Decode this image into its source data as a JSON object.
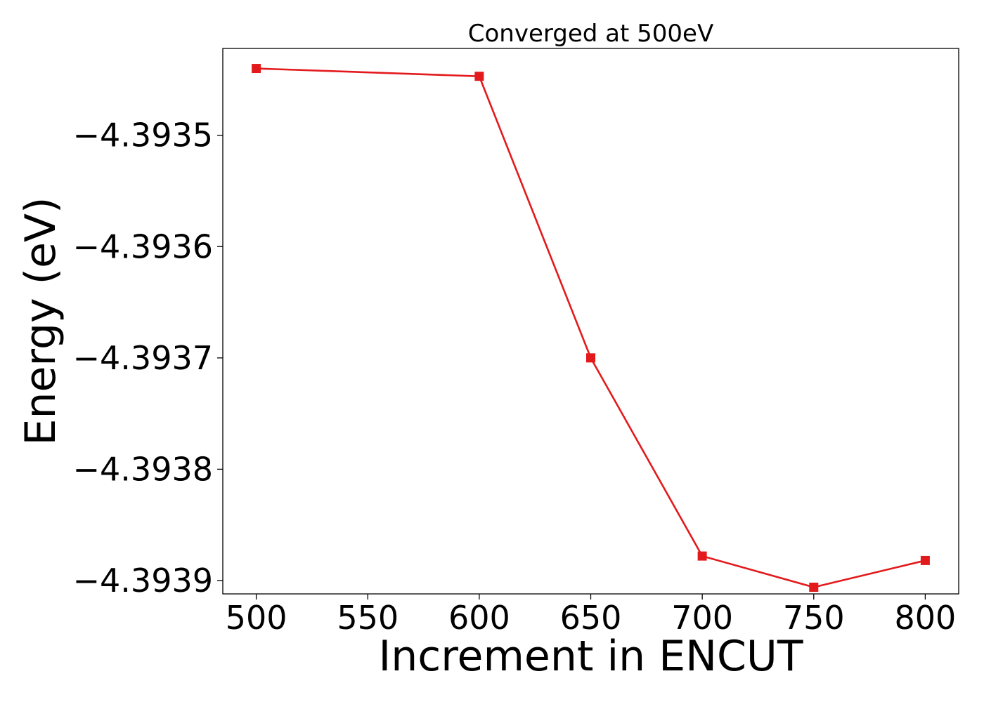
{
  "chart_data": {
    "type": "line",
    "title": "Converged at 500eV",
    "xlabel": "Increment in ENCUT",
    "ylabel": "Energy (eV)",
    "x": [
      500,
      600,
      650,
      700,
      750,
      800
    ],
    "series": [
      {
        "values": [
          -4.39344,
          -4.393447,
          -4.3937,
          -4.393878,
          -4.393906,
          -4.393882
        ],
        "color": "#e31a1c",
        "marker": "square"
      }
    ],
    "x_ticks": [
      500,
      550,
      600,
      650,
      700,
      750,
      800
    ],
    "x_tick_labels": [
      "500",
      "550",
      "600",
      "650",
      "700",
      "750",
      "800"
    ],
    "y_ticks": [
      -4.3935,
      -4.3936,
      -4.3937,
      -4.3938,
      -4.3939
    ],
    "y_tick_labels": [
      "−4.3935",
      "−4.3936",
      "−4.3937",
      "−4.3938",
      "−4.3939"
    ],
    "xlim": [
      485,
      815
    ],
    "ylim": [
      -4.393912,
      -4.393422
    ],
    "grid": false,
    "legend": "none"
  }
}
